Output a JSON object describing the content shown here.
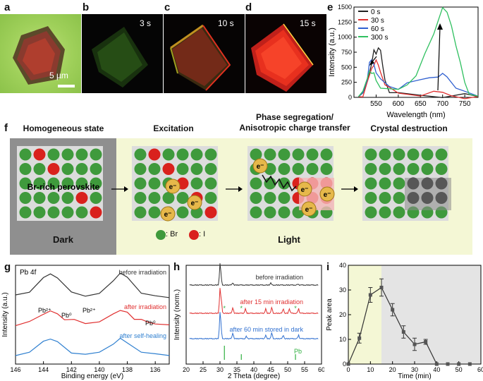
{
  "panel_labels": {
    "a": "a",
    "b": "b",
    "c": "c",
    "d": "d",
    "e": "e",
    "f": "f",
    "g": "g",
    "h": "h",
    "i": "i"
  },
  "micro": {
    "scale_bar": "5 µm",
    "t_b": "3 s",
    "t_c": "10 s",
    "t_d": "15 s"
  },
  "schematic": {
    "stage1_title": "Homogeneous state",
    "stage2_title": "Excitation",
    "stage3_title_1": "Phase segregation/",
    "stage3_title_2": "Anisotropic charge transfer",
    "stage4_title": "Crystal destruction",
    "br_rich": "Br-rich perovskite",
    "dark": "Dark",
    "light": "Light",
    "legend_br": ": Br",
    "legend_i": ": I",
    "electron": "e⁻",
    "colors": {
      "green": "#3f9a3c",
      "red": "#d9211d",
      "dark_bg": "#8f8f8f",
      "light_bg": "#f4f7d5"
    }
  },
  "chart_data": [
    {
      "id": "e",
      "type": "line",
      "xlabel": "Wavelength (nm)",
      "ylabel": "Intensity (a.u.)",
      "xlim": [
        500,
        780
      ],
      "xticks": [
        550,
        600,
        650,
        700,
        750
      ],
      "ylim": [
        0,
        1500
      ],
      "yticks": [
        0,
        250,
        500,
        750,
        1000,
        1250,
        1500
      ],
      "legend": "top-left",
      "series": [
        {
          "name": "0 s",
          "color": "#222222",
          "x": [
            510,
            520,
            530,
            540,
            545,
            550,
            555,
            560,
            565,
            570,
            580,
            600,
            650,
            700,
            750,
            780
          ],
          "y": [
            10,
            60,
            280,
            600,
            760,
            720,
            850,
            740,
            500,
            300,
            120,
            50,
            35,
            25,
            20,
            15
          ]
        },
        {
          "name": "30 s",
          "color": "#e03030",
          "x": [
            510,
            520,
            530,
            540,
            545,
            550,
            555,
            560,
            570,
            580,
            600,
            650,
            680,
            700,
            720,
            750,
            780
          ],
          "y": [
            10,
            50,
            230,
            480,
            560,
            580,
            520,
            430,
            250,
            140,
            70,
            50,
            60,
            70,
            40,
            20,
            15
          ]
        },
        {
          "name": "60 s",
          "color": "#3060d0",
          "x": [
            510,
            520,
            530,
            535,
            540,
            545,
            550,
            560,
            580,
            600,
            620,
            650,
            670,
            690,
            700,
            710,
            730,
            750,
            780
          ],
          "y": [
            10,
            80,
            320,
            540,
            610,
            560,
            450,
            280,
            180,
            160,
            200,
            280,
            340,
            380,
            370,
            340,
            180,
            60,
            20
          ]
        },
        {
          "name": "300 s",
          "color": "#30c060",
          "x": [
            510,
            520,
            530,
            535,
            540,
            545,
            550,
            560,
            580,
            600,
            620,
            640,
            660,
            680,
            690,
            700,
            710,
            720,
            730,
            740,
            750,
            760,
            780
          ],
          "y": [
            10,
            60,
            300,
            450,
            440,
            380,
            280,
            180,
            100,
            120,
            220,
            400,
            700,
            1050,
            1300,
            1450,
            1400,
            1200,
            900,
            550,
            250,
            80,
            20
          ]
        }
      ]
    },
    {
      "id": "g",
      "type": "line",
      "xlabel": "Binding energy (eV)",
      "ylabel": "Intensity (a.u.)",
      "xlim": [
        146,
        135
      ],
      "xticks": [
        146,
        144,
        142,
        140,
        138,
        136
      ],
      "title": "Pb 4f",
      "annotations": [
        "Pb²⁺",
        "Pb⁰",
        "Pb²⁺",
        "Pb⁰"
      ],
      "series": [
        {
          "name": "before irradiation",
          "color": "#333333",
          "x": [
            146,
            145,
            144,
            143.5,
            143,
            142,
            141,
            140,
            139,
            138.5,
            138,
            137,
            136,
            135
          ],
          "y": [
            0.1,
            0.3,
            1.0,
            1.25,
            1.0,
            0.25,
            0.1,
            0.2,
            0.9,
            1.25,
            1.0,
            0.25,
            0.08,
            0.05
          ]
        },
        {
          "name": "after irradiation",
          "color": "#e03030",
          "x": [
            146,
            145,
            144,
            143.5,
            143,
            142.5,
            141.8,
            141,
            140,
            139,
            138.5,
            138,
            137.5,
            137,
            136.5,
            136,
            135
          ],
          "y": [
            0.1,
            0.3,
            0.8,
            0.95,
            0.85,
            0.45,
            0.42,
            0.25,
            0.3,
            0.85,
            1.0,
            0.85,
            0.5,
            0.45,
            0.35,
            0.2,
            0.1
          ]
        },
        {
          "name": "after self-healing",
          "color": "#3080d0",
          "x": [
            146,
            145,
            144,
            143.5,
            143,
            142,
            141,
            140,
            139,
            138.5,
            138,
            137,
            136,
            135
          ],
          "y": [
            0.05,
            0.2,
            0.8,
            1.0,
            0.8,
            0.2,
            0.08,
            0.15,
            0.7,
            1.0,
            0.8,
            0.2,
            0.06,
            0.03
          ]
        }
      ]
    },
    {
      "id": "h",
      "type": "line",
      "xlabel": "2 Theta (degree)",
      "ylabel": "Intensity (norm.)",
      "xlim": [
        20,
        60
      ],
      "xticks": [
        20,
        25,
        30,
        35,
        40,
        45,
        50,
        55,
        60
      ],
      "series": [
        {
          "name": "before irradiation",
          "color": "#333333",
          "peaks": [
            [
              30,
              1.0
            ],
            [
              30.3,
              0.35
            ],
            [
              33.8,
              0.12
            ],
            [
              45,
              0.1
            ],
            [
              53,
              0.05
            ]
          ]
        },
        {
          "name": "after 15 min irradiation",
          "color": "#e03030",
          "peaks": [
            [
              30,
              1.0
            ],
            [
              30.4,
              0.5
            ],
            [
              33.8,
              0.25
            ],
            [
              37.5,
              0.2
            ],
            [
              43.5,
              0.2
            ],
            [
              45.3,
              0.25
            ],
            [
              48.7,
              0.2
            ],
            [
              50.5,
              0.2
            ],
            [
              53.2,
              0.2
            ]
          ]
        },
        {
          "name": "after 60 min stored in dark",
          "color": "#3070d0",
          "peaks": [
            [
              30,
              1.0
            ],
            [
              30.3,
              0.4
            ],
            [
              33.8,
              0.25
            ],
            [
              37.8,
              0.1
            ],
            [
              43.5,
              0.15
            ],
            [
              45.3,
              0.25
            ],
            [
              48.7,
              0.15
            ],
            [
              53.2,
              0.15
            ]
          ]
        }
      ],
      "reference": {
        "name": "Pb",
        "color": "#30b040",
        "lines": [
          31.3,
          36.3,
          52.3
        ],
        "heights": [
          1.0,
          0.4,
          0.4
        ]
      },
      "star_positions": [
        31.3,
        36.3,
        52.3
      ]
    },
    {
      "id": "i",
      "type": "line",
      "xlabel": "Time (min)",
      "ylabel": "Peak area",
      "xlim": [
        0,
        60
      ],
      "xticks": [
        0,
        10,
        20,
        30,
        40,
        50,
        60
      ],
      "ylim": [
        0,
        40
      ],
      "yticks": [
        0,
        10,
        20,
        30,
        40
      ],
      "shading": [
        {
          "from": 0,
          "to": 15,
          "color": "#f4f7d5"
        },
        {
          "from": 15,
          "to": 60,
          "color": "#e4e4e4"
        }
      ],
      "series": [
        {
          "name": "Peak area",
          "color": "#333333",
          "x": [
            0,
            5,
            10,
            15,
            20,
            25,
            30,
            35,
            40,
            45,
            50,
            55
          ],
          "y": [
            0,
            10.5,
            28,
            31,
            22,
            13,
            8,
            9,
            0,
            0,
            0,
            0
          ],
          "err": [
            0,
            2,
            3,
            3.5,
            2.5,
            2.5,
            2.5,
            1,
            0,
            0,
            0,
            0
          ]
        }
      ]
    }
  ]
}
